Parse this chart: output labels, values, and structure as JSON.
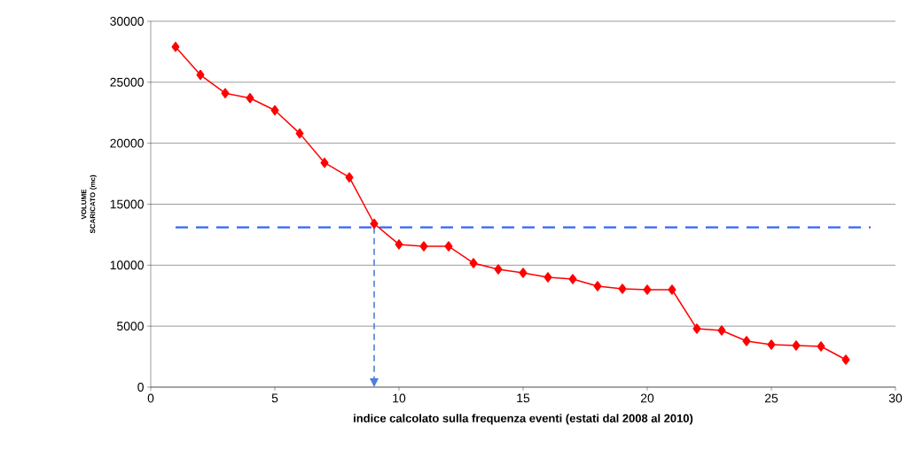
{
  "chart_data": {
    "type": "line",
    "xlabel": "indice calcolato sulla frequenza eventi (estati dal 2008 al 2010)",
    "ylabel": "VOLUME SCARICATO (mc)",
    "x": [
      1,
      2,
      3,
      4,
      5,
      6,
      7,
      8,
      9,
      10,
      11,
      12,
      13,
      14,
      15,
      16,
      17,
      18,
      19,
      20,
      21,
      22,
      23,
      24,
      25,
      26,
      27,
      28
    ],
    "series": [
      {
        "color": "#ff0000",
        "values": [
          27900,
          25600,
          24100,
          23700,
          22700,
          20800,
          18400,
          17200,
          13400,
          11700,
          11550,
          11550,
          10170,
          9660,
          9370,
          9010,
          8860,
          8280,
          8060,
          7990,
          7990,
          4790,
          4650,
          3780,
          3490,
          3410,
          3340,
          2250
        ]
      }
    ],
    "xlim": [
      0,
      30
    ],
    "ylim": [
      0,
      30000
    ],
    "xticks": [
      0,
      5,
      10,
      15,
      20,
      25,
      30
    ],
    "yticks": [
      0,
      5000,
      10000,
      15000,
      20000,
      25000,
      30000
    ],
    "grid": "y",
    "marker": "diamond",
    "line_style": "solid",
    "ref_lines": [
      {
        "axis": "y",
        "value": 13100,
        "color": "#3366ff",
        "line_style": "dashed"
      },
      {
        "axis": "x",
        "value": 9,
        "color": "#4a7fdc",
        "line_style": "dashed"
      }
    ]
  }
}
